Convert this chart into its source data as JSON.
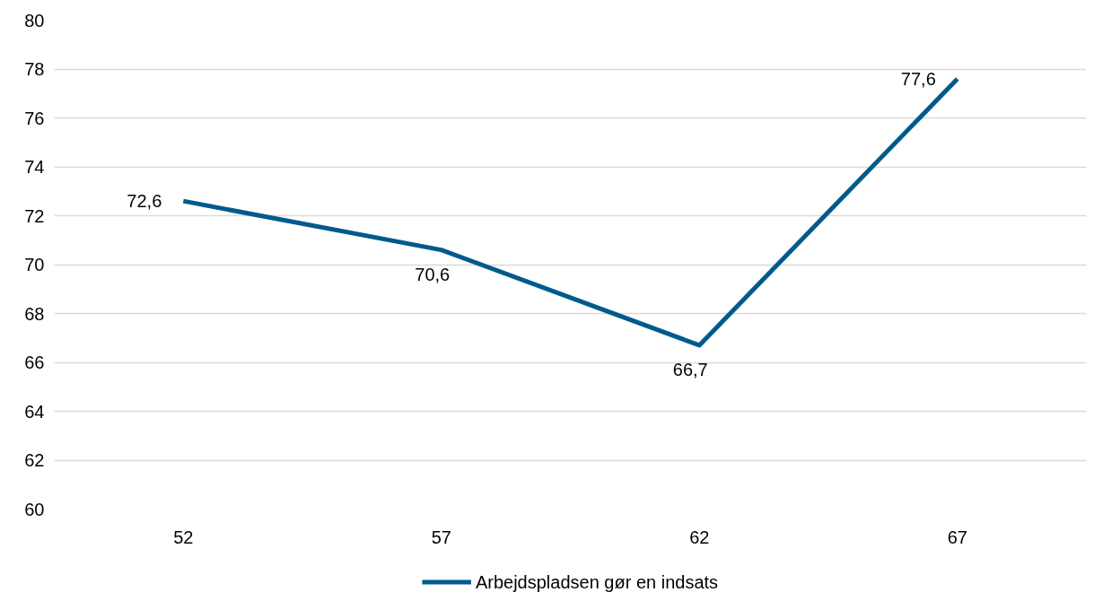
{
  "chart_data": {
    "type": "line",
    "categories": [
      "52",
      "57",
      "62",
      "67"
    ],
    "series": [
      {
        "name": "Arbejdspladsen gør en indsats",
        "color": "#005a8c",
        "values": [
          72.6,
          70.6,
          66.7,
          77.6
        ],
        "value_labels": [
          "72,6",
          "70,6",
          "66,7",
          "77,6"
        ]
      }
    ],
    "ylim": [
      60,
      80
    ],
    "yticks": [
      60,
      62,
      64,
      66,
      68,
      70,
      72,
      74,
      76,
      78,
      80
    ],
    "grid": "y",
    "legend": "bottom",
    "marker": "none",
    "line_style": "solid"
  }
}
